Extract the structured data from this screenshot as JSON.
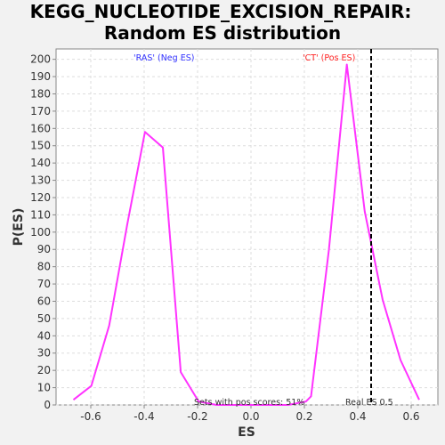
{
  "chart_data": {
    "type": "line",
    "title_line1": "KEGG_NUCLEOTIDE_EXCISION_REPAIR:",
    "title_line2": "Random ES distribution",
    "xlabel": "ES",
    "ylabel": "P(ES)",
    "xlim": [
      -0.73,
      0.7
    ],
    "ylim": [
      0,
      206
    ],
    "x_ticks": [
      -0.6,
      -0.4,
      -0.2,
      0.0,
      0.2,
      0.4,
      0.6
    ],
    "x_tick_labels": [
      "-0.6",
      "-0.4",
      "-0.2",
      "0.0",
      "0.2",
      "0.4",
      "0.6"
    ],
    "y_ticks": [
      0,
      10,
      20,
      30,
      40,
      50,
      60,
      70,
      80,
      90,
      100,
      110,
      120,
      130,
      140,
      150,
      160,
      170,
      180,
      190,
      200
    ],
    "grid": true,
    "series": [
      {
        "color": "#ff33ff",
        "x": [
          -0.665,
          -0.598,
          -0.531,
          -0.464,
          -0.397,
          -0.33,
          -0.263,
          -0.196,
          -0.129,
          -0.062,
          0.005,
          0.072,
          0.139,
          0.206,
          0.225,
          0.292,
          0.359,
          0.426,
          0.493,
          0.56,
          0.63
        ],
        "y": [
          3,
          11,
          46,
          104,
          158,
          149,
          19,
          2,
          0,
          0,
          0,
          0,
          0,
          2,
          5,
          90,
          197,
          112,
          61,
          26,
          3
        ]
      }
    ],
    "real_es": 0.45,
    "annotations": {
      "neg_label": "'RAS' (Neg ES)",
      "pos_label": "'CT' (Pos ES)",
      "pos_scores": "Sets with pos scores: 51%",
      "real_es_label": "Real ES 0.5"
    },
    "colors": {
      "neg": "#3333ff",
      "pos": "#ff2222",
      "line": "#ff33ff",
      "grid": "#dddddd",
      "plot_bg": "#ffffff"
    }
  }
}
